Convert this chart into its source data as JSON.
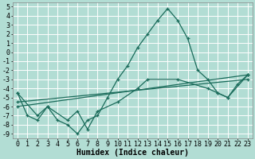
{
  "xlabel": "Humidex (Indice chaleur)",
  "bg_color": "#b2ddd4",
  "grid_color": "#ffffff",
  "line_color": "#1a6b5a",
  "xlim": [
    -0.5,
    23.5
  ],
  "ylim": [
    -9.5,
    5.5
  ],
  "xticks": [
    0,
    1,
    2,
    3,
    4,
    5,
    6,
    7,
    8,
    9,
    10,
    11,
    12,
    13,
    14,
    15,
    16,
    17,
    18,
    19,
    20,
    21,
    22,
    23
  ],
  "yticks": [
    5,
    4,
    3,
    2,
    1,
    0,
    -1,
    -2,
    -3,
    -4,
    -5,
    -6,
    -7,
    -8,
    -9
  ],
  "series1_x": [
    0,
    1,
    2,
    3,
    4,
    5,
    6,
    7,
    8,
    9,
    10,
    11,
    12,
    13,
    14,
    15,
    16,
    17,
    18,
    19,
    20,
    21,
    22,
    23
  ],
  "series1_y": [
    -4.5,
    -7,
    -7.5,
    -6,
    -7.5,
    -8,
    -9,
    -7.5,
    -7,
    -5,
    -3,
    -1.5,
    0.5,
    2,
    3.5,
    4.8,
    3.5,
    1.5,
    -2,
    -3,
    -4.5,
    -5,
    -3.5,
    -2.5
  ],
  "series2_x": [
    0,
    2,
    3,
    5,
    6,
    7,
    8,
    10,
    12,
    13,
    16,
    19,
    20,
    21,
    23
  ],
  "series2_y": [
    -4.5,
    -7,
    -6,
    -7.5,
    -6.5,
    -8.5,
    -6.5,
    -5.5,
    -4,
    -3,
    -3,
    -4,
    -4.5,
    -5,
    -2.5
  ],
  "series3_x": [
    0,
    23
  ],
  "series3_y": [
    -5.5,
    -3.0
  ],
  "series4_x": [
    0,
    23
  ],
  "series4_y": [
    -6.0,
    -2.5
  ],
  "fontsize": 7,
  "tick_fontsize": 6,
  "lw": 0.9,
  "ms": 3,
  "mew": 0.9
}
